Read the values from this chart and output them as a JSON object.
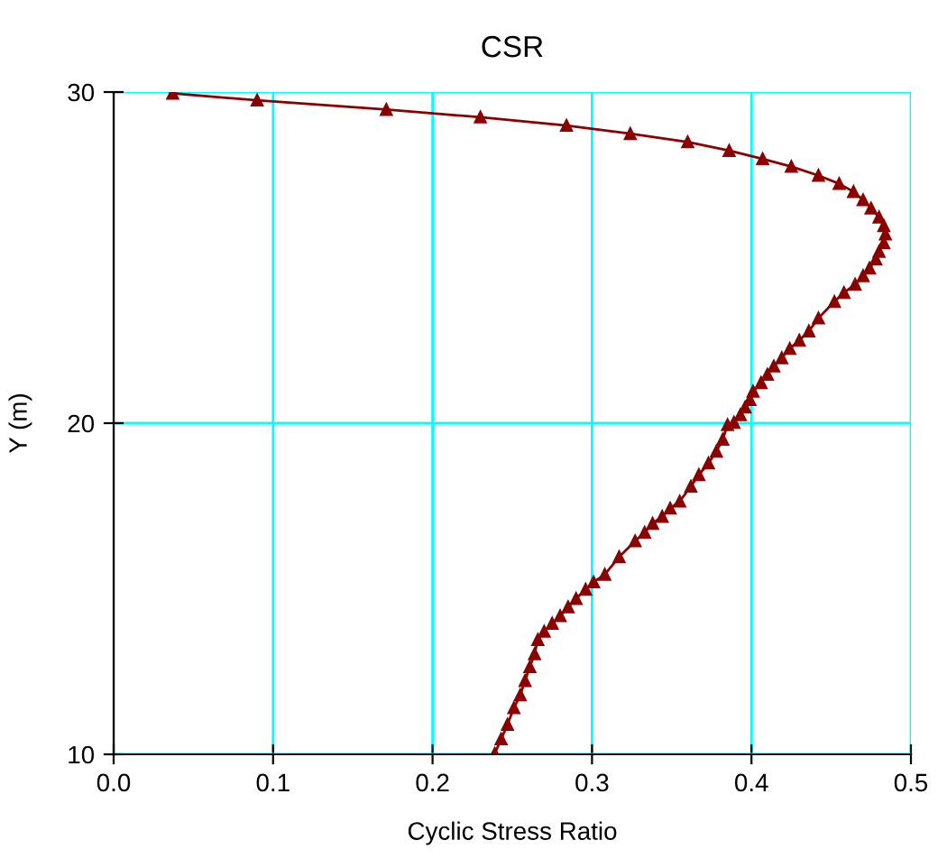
{
  "chart_data": {
    "type": "line",
    "title": "CSR",
    "xlabel": "Cyclic Stress Ratio",
    "ylabel": "Y (m)",
    "xlim": [
      0,
      0.5
    ],
    "ylim": [
      10,
      30
    ],
    "xticks": [
      {
        "value": 0,
        "label": "0.0"
      },
      0.1,
      0.2,
      0.3,
      0.4,
      0.5
    ],
    "yticks": [
      10,
      20,
      30
    ],
    "grid": true,
    "marker": "triangle",
    "line_style": "solid",
    "series": [
      {
        "color": "#8b0000",
        "x": [
          0.037,
          0.09,
          0.171,
          0.23,
          0.284,
          0.324,
          0.36,
          0.386,
          0.407,
          0.425,
          0.442,
          0.455,
          0.464,
          0.47,
          0.475,
          0.48,
          0.483,
          0.484,
          0.483,
          0.48,
          0.478,
          0.474,
          0.47,
          0.465,
          0.458,
          0.452,
          0.442,
          0.436,
          0.43,
          0.424,
          0.419,
          0.414,
          0.41,
          0.406,
          0.401,
          0.399,
          0.396,
          0.393,
          0.389,
          0.385,
          0.382,
          0.378,
          0.373,
          0.367,
          0.362,
          0.355,
          0.349,
          0.344,
          0.338,
          0.333,
          0.327,
          0.317,
          0.308,
          0.301,
          0.296,
          0.29,
          0.285,
          0.28,
          0.275,
          0.27,
          0.266,
          0.264,
          0.261,
          0.258,
          0.255,
          0.251,
          0.247,
          0.243,
          0.239
        ],
        "values": [
          29.96,
          29.75,
          29.47,
          29.24,
          28.99,
          28.74,
          28.49,
          28.23,
          27.98,
          27.75,
          27.48,
          27.23,
          26.99,
          26.74,
          26.49,
          26.22,
          25.96,
          25.71,
          25.44,
          25.18,
          24.95,
          24.68,
          24.45,
          24.19,
          23.94,
          23.67,
          23.17,
          22.78,
          22.5,
          22.25,
          21.97,
          21.72,
          21.47,
          21.22,
          20.96,
          20.71,
          20.48,
          20.25,
          20.02,
          19.95,
          19.51,
          19.15,
          18.79,
          18.44,
          18.09,
          17.64,
          17.43,
          17.18,
          16.97,
          16.7,
          16.44,
          15.96,
          15.43,
          15.2,
          14.98,
          14.7,
          14.45,
          14.18,
          13.95,
          13.71,
          13.46,
          13.03,
          12.64,
          12.22,
          11.79,
          11.4,
          10.9,
          10.46,
          10.02
        ]
      }
    ]
  }
}
